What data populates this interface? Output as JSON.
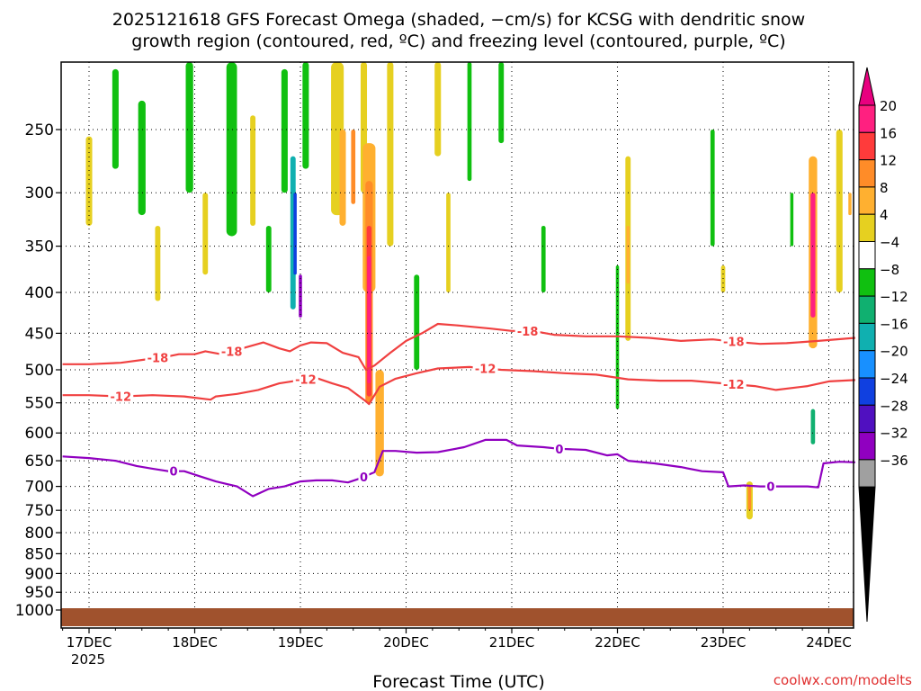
{
  "chart_data": {
    "type": "heatmap",
    "title_line1": "2025121618 GFS Forecast Omega (shaded, −cm/s) for KCSG with dendritic snow",
    "title_line2": "growth region (contoured, red, ºC) and freezing level (contoured, purple, ºC)",
    "xlabel": "Forecast Time (UTC)",
    "credit": "coolwx.com/modelts",
    "year_label": "2025",
    "x_ticks": [
      {
        "label": "17DEC",
        "day": 0.0
      },
      {
        "label": "18DEC",
        "day": 1.0
      },
      {
        "label": "19DEC",
        "day": 2.0
      },
      {
        "label": "20DEC",
        "day": 3.0
      },
      {
        "label": "21DEC",
        "day": 4.0
      },
      {
        "label": "22DEC",
        "day": 5.0
      },
      {
        "label": "23DEC",
        "day": 6.0
      },
      {
        "label": "24DEC",
        "day": 7.0
      }
    ],
    "xlim_days": [
      -0.25,
      7.25
    ],
    "y_ticks": [
      250,
      300,
      350,
      400,
      450,
      500,
      550,
      600,
      650,
      700,
      750,
      800,
      850,
      900,
      950,
      1000
    ],
    "ylim_hpa": [
      200,
      1025
    ],
    "y_scale": "log-pressure",
    "grid": "dotted",
    "colorbar": {
      "labels": [
        "20",
        "16",
        "12",
        "8",
        "4",
        "−4",
        "−8",
        "−12",
        "−16",
        "−20",
        "−24",
        "−28",
        "−32",
        "−36"
      ],
      "colors": [
        "#ff2080",
        "#ff3b3b",
        "#ff8c28",
        "#ffb030",
        "#e6d020",
        "#ffffff",
        "#10c010",
        "#10b070",
        "#10b0b0",
        "#1890ff",
        "#1040e0",
        "#5010c0",
        "#9000c0",
        "#a0a0a0"
      ],
      "top_arrow_color": "#e8007f",
      "bottom_arrow_color": "#000000"
    },
    "contours": {
      "dgz_minus18": {
        "label": "-18",
        "color": "#f04040",
        "label_days": [
          0.65,
          1.35,
          4.15,
          6.1
        ],
        "points": [
          [
            -0.25,
            492
          ],
          [
            0.0,
            492
          ],
          [
            0.3,
            490
          ],
          [
            0.6,
            484
          ],
          [
            0.75,
            481
          ],
          [
            0.85,
            478
          ],
          [
            1.0,
            478
          ],
          [
            1.1,
            474
          ],
          [
            1.25,
            478
          ],
          [
            1.4,
            472
          ],
          [
            1.65,
            462
          ],
          [
            1.8,
            470
          ],
          [
            1.9,
            474
          ],
          [
            2.0,
            466
          ],
          [
            2.1,
            462
          ],
          [
            2.25,
            463
          ],
          [
            2.4,
            476
          ],
          [
            2.55,
            482
          ],
          [
            2.62,
            500
          ],
          [
            2.7,
            494
          ],
          [
            2.85,
            476
          ],
          [
            3.0,
            460
          ],
          [
            3.15,
            450
          ],
          [
            3.3,
            438
          ],
          [
            3.5,
            440
          ],
          [
            3.8,
            444
          ],
          [
            4.0,
            447
          ],
          [
            4.2,
            447
          ],
          [
            4.4,
            452
          ],
          [
            4.7,
            454
          ],
          [
            5.0,
            454
          ],
          [
            5.3,
            456
          ],
          [
            5.6,
            460
          ],
          [
            5.9,
            458
          ],
          [
            6.1,
            461
          ],
          [
            6.35,
            464
          ],
          [
            6.6,
            463
          ],
          [
            6.9,
            460
          ],
          [
            7.25,
            456
          ]
        ]
      },
      "dgz_minus12": {
        "label": "-12",
        "color": "#f04040",
        "label_days": [
          0.3,
          2.05,
          3.75,
          6.1
        ],
        "points": [
          [
            -0.25,
            538
          ],
          [
            0.0,
            538
          ],
          [
            0.3,
            540
          ],
          [
            0.6,
            538
          ],
          [
            0.9,
            540
          ],
          [
            1.15,
            545
          ],
          [
            1.2,
            540
          ],
          [
            1.4,
            536
          ],
          [
            1.6,
            530
          ],
          [
            1.8,
            520
          ],
          [
            2.0,
            515
          ],
          [
            2.15,
            512
          ],
          [
            2.3,
            520
          ],
          [
            2.45,
            527
          ],
          [
            2.6,
            545
          ],
          [
            2.65,
            552
          ],
          [
            2.75,
            525
          ],
          [
            2.9,
            513
          ],
          [
            3.1,
            505
          ],
          [
            3.3,
            498
          ],
          [
            3.6,
            496
          ],
          [
            3.9,
            500
          ],
          [
            4.2,
            502
          ],
          [
            4.5,
            505
          ],
          [
            4.8,
            507
          ],
          [
            5.1,
            514
          ],
          [
            5.4,
            516
          ],
          [
            5.7,
            516
          ],
          [
            6.0,
            520
          ],
          [
            6.3,
            524
          ],
          [
            6.5,
            530
          ],
          [
            6.8,
            524
          ],
          [
            7.0,
            517
          ],
          [
            7.25,
            515
          ]
        ]
      },
      "freezing_level": {
        "label": "0",
        "color": "#9000c0",
        "label_days": [
          0.8,
          2.6,
          4.45,
          6.45
        ],
        "points": [
          [
            -0.25,
            642
          ],
          [
            0.0,
            645
          ],
          [
            0.25,
            650
          ],
          [
            0.45,
            660
          ],
          [
            0.6,
            665
          ],
          [
            0.75,
            670
          ],
          [
            0.9,
            670
          ],
          [
            1.05,
            680
          ],
          [
            1.2,
            690
          ],
          [
            1.4,
            700
          ],
          [
            1.55,
            720
          ],
          [
            1.7,
            705
          ],
          [
            1.85,
            700
          ],
          [
            2.0,
            690
          ],
          [
            2.15,
            688
          ],
          [
            2.3,
            688
          ],
          [
            2.45,
            692
          ],
          [
            2.55,
            685
          ],
          [
            2.7,
            672
          ],
          [
            2.78,
            632
          ],
          [
            2.9,
            632
          ],
          [
            3.1,
            635
          ],
          [
            3.3,
            634
          ],
          [
            3.55,
            625
          ],
          [
            3.75,
            612
          ],
          [
            3.95,
            612
          ],
          [
            4.05,
            622
          ],
          [
            4.3,
            625
          ],
          [
            4.45,
            628
          ],
          [
            4.7,
            630
          ],
          [
            4.9,
            640
          ],
          [
            5.0,
            638
          ],
          [
            5.1,
            650
          ],
          [
            5.35,
            655
          ],
          [
            5.6,
            662
          ],
          [
            5.8,
            670
          ],
          [
            6.0,
            672
          ],
          [
            6.05,
            700
          ],
          [
            6.2,
            698
          ],
          [
            6.35,
            700
          ],
          [
            6.5,
            700
          ],
          [
            6.65,
            700
          ],
          [
            6.8,
            700
          ],
          [
            6.9,
            702
          ],
          [
            6.95,
            655
          ],
          [
            7.1,
            652
          ],
          [
            7.25,
            653
          ]
        ]
      }
    },
    "omega_patches": [
      {
        "day": 0.0,
        "p_top": 255,
        "p_bot": 330,
        "w": 0.06,
        "value": 5
      },
      {
        "day": 0.25,
        "p_top": 210,
        "p_bot": 280,
        "w": 0.06,
        "value": -6
      },
      {
        "day": 0.5,
        "p_top": 230,
        "p_bot": 320,
        "w": 0.07,
        "value": -6
      },
      {
        "day": 0.65,
        "p_top": 330,
        "p_bot": 410,
        "w": 0.05,
        "value": 5
      },
      {
        "day": 0.95,
        "p_top": 200,
        "p_bot": 300,
        "w": 0.07,
        "value": -6
      },
      {
        "day": 1.1,
        "p_top": 300,
        "p_bot": 380,
        "w": 0.05,
        "value": 5
      },
      {
        "day": 1.35,
        "p_top": 200,
        "p_bot": 340,
        "w": 0.1,
        "value": -6
      },
      {
        "day": 1.55,
        "p_top": 240,
        "p_bot": 330,
        "w": 0.05,
        "value": 5
      },
      {
        "day": 1.7,
        "p_top": 330,
        "p_bot": 400,
        "w": 0.05,
        "value": -6
      },
      {
        "day": 1.85,
        "p_top": 210,
        "p_bot": 300,
        "w": 0.06,
        "value": -6
      },
      {
        "day": 1.93,
        "p_top": 270,
        "p_bot": 420,
        "w": 0.05,
        "value": -14
      },
      {
        "day": 1.95,
        "p_top": 300,
        "p_bot": 380,
        "w": 0.03,
        "value": -20
      },
      {
        "day": 2.0,
        "p_top": 380,
        "p_bot": 430,
        "w": 0.03,
        "value": -28
      },
      {
        "day": 2.05,
        "p_top": 200,
        "p_bot": 280,
        "w": 0.06,
        "value": -6
      },
      {
        "day": 2.35,
        "p_top": 200,
        "p_bot": 320,
        "w": 0.12,
        "value": 5
      },
      {
        "day": 2.4,
        "p_top": 250,
        "p_bot": 330,
        "w": 0.06,
        "value": 10
      },
      {
        "day": 2.5,
        "p_top": 250,
        "p_bot": 310,
        "w": 0.04,
        "value": 14
      },
      {
        "day": 2.6,
        "p_top": 200,
        "p_bot": 300,
        "w": 0.06,
        "value": 5
      },
      {
        "day": 2.65,
        "p_top": 260,
        "p_bot": 400,
        "w": 0.12,
        "value": 10
      },
      {
        "day": 2.65,
        "p_top": 290,
        "p_bot": 550,
        "w": 0.07,
        "value": 14
      },
      {
        "day": 2.65,
        "p_top": 330,
        "p_bot": 540,
        "w": 0.045,
        "value": 17
      },
      {
        "day": 2.65,
        "p_top": 360,
        "p_bot": 520,
        "w": 0.035,
        "value": 21
      },
      {
        "day": 2.75,
        "p_top": 500,
        "p_bot": 680,
        "w": 0.08,
        "value": 8
      },
      {
        "day": 2.85,
        "p_top": 200,
        "p_bot": 350,
        "w": 0.06,
        "value": 5
      },
      {
        "day": 3.1,
        "p_top": 380,
        "p_bot": 500,
        "w": 0.05,
        "value": -6
      },
      {
        "day": 3.3,
        "p_top": 200,
        "p_bot": 270,
        "w": 0.06,
        "value": 5
      },
      {
        "day": 3.4,
        "p_top": 300,
        "p_bot": 400,
        "w": 0.04,
        "value": 5
      },
      {
        "day": 3.6,
        "p_top": 200,
        "p_bot": 290,
        "w": 0.04,
        "value": -6
      },
      {
        "day": 3.9,
        "p_top": 200,
        "p_bot": 260,
        "w": 0.05,
        "value": -6
      },
      {
        "day": 4.3,
        "p_top": 330,
        "p_bot": 400,
        "w": 0.04,
        "value": -6
      },
      {
        "day": 5.1,
        "p_top": 270,
        "p_bot": 460,
        "w": 0.05,
        "value": 5
      },
      {
        "day": 5.1,
        "p_top": 330,
        "p_bot": 390,
        "w": 0.03,
        "value": 10
      },
      {
        "day": 5.0,
        "p_top": 370,
        "p_bot": 560,
        "w": 0.03,
        "value": -6
      },
      {
        "day": 5.9,
        "p_top": 250,
        "p_bot": 350,
        "w": 0.04,
        "value": -6
      },
      {
        "day": 6.0,
        "p_top": 370,
        "p_bot": 400,
        "w": 0.04,
        "value": 5
      },
      {
        "day": 6.25,
        "p_top": 690,
        "p_bot": 770,
        "w": 0.06,
        "value": 5
      },
      {
        "day": 6.25,
        "p_top": 700,
        "p_bot": 750,
        "w": 0.03,
        "value": 12
      },
      {
        "day": 6.65,
        "p_top": 300,
        "p_bot": 350,
        "w": 0.03,
        "value": -6
      },
      {
        "day": 6.85,
        "p_top": 270,
        "p_bot": 470,
        "w": 0.08,
        "value": 10
      },
      {
        "day": 6.85,
        "p_top": 300,
        "p_bot": 430,
        "w": 0.045,
        "value": 21
      },
      {
        "day": 6.85,
        "p_top": 560,
        "p_bot": 620,
        "w": 0.04,
        "value": -10
      },
      {
        "day": 7.1,
        "p_top": 250,
        "p_bot": 400,
        "w": 0.06,
        "value": 5
      },
      {
        "day": 7.2,
        "p_top": 300,
        "p_bot": 320,
        "w": 0.03,
        "value": 10
      }
    ],
    "terrain_color": "#a0522d"
  }
}
